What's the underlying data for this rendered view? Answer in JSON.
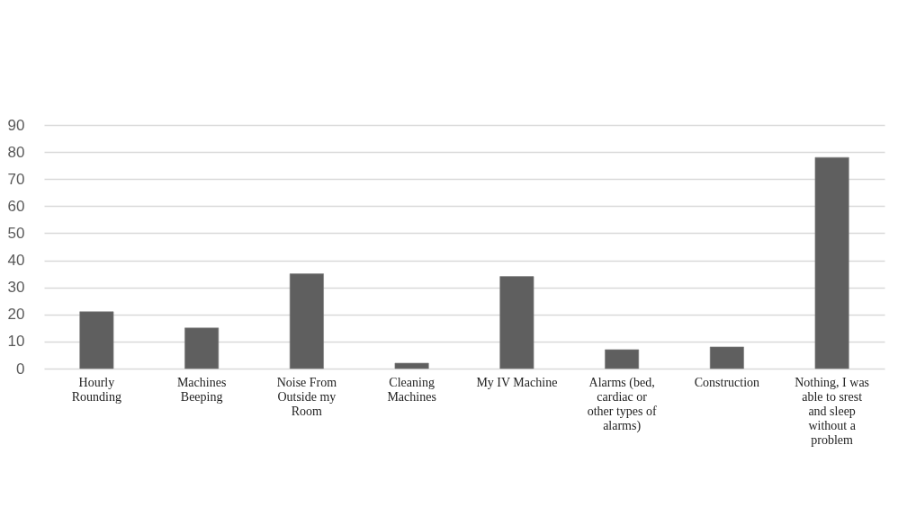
{
  "chart_data": {
    "type": "bar",
    "categories": [
      "Hourly Rounding",
      "Machines Beeping",
      "Noise From Outside my Room",
      "Cleaning Machines",
      "My IV Machine",
      "Alarms (bed, cardiac or other types of alarms)",
      "Construction",
      "Nothing, I was able to srest and sleep without a problem"
    ],
    "values": [
      21,
      15,
      35,
      2,
      34,
      7,
      8,
      78
    ],
    "color": "#5f5f5f",
    "ylim": [
      0,
      90
    ],
    "yticks": [
      0,
      10,
      20,
      30,
      40,
      50,
      60,
      70,
      80,
      90
    ],
    "grid": "y"
  }
}
